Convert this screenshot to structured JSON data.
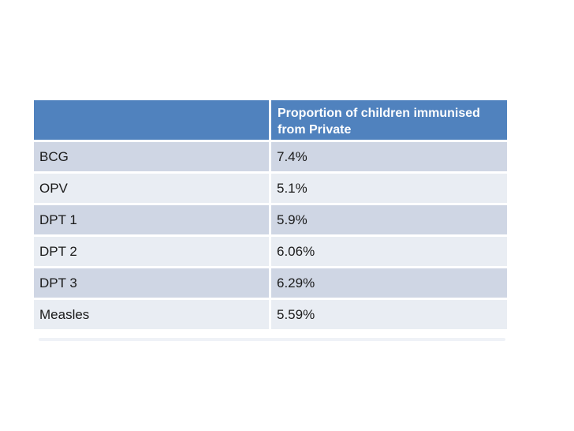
{
  "slide": {
    "background_color": "#ffffff"
  },
  "table": {
    "header": {
      "col1_label": "",
      "col2_line1": "Proportion of children immunised",
      "col2_line2": "from Private"
    },
    "rows": [
      {
        "label": "BCG",
        "value": "7.4%"
      },
      {
        "label": "OPV",
        "value": "5.1%"
      },
      {
        "label": "DPT 1",
        "value": "5.9%"
      },
      {
        "label": "DPT 2",
        "value": "6.06%"
      },
      {
        "label": "DPT 3",
        "value": "6.29%"
      },
      {
        "label": "Measles",
        "value": "5.59%"
      }
    ],
    "colors": {
      "header_bg": "#5082be",
      "header_text": "#ffffff",
      "band_dark": "#cfd6e4",
      "band_light": "#e9edf3",
      "body_text": "#1a1a1a",
      "gap": "#ffffff"
    }
  },
  "chart_data": {
    "type": "table",
    "title": "Proportion of children immunised from Private",
    "categories": [
      "BCG",
      "OPV",
      "DPT 1",
      "DPT 2",
      "DPT 3",
      "Measles"
    ],
    "values": [
      7.4,
      5.1,
      5.9,
      6.06,
      6.29,
      5.59
    ],
    "value_unit": "percent",
    "column_headers": [
      "",
      "Proportion of children immunised from Private"
    ]
  }
}
